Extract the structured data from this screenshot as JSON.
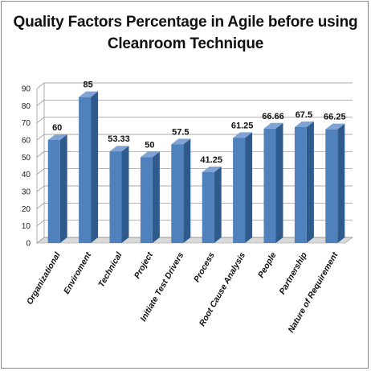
{
  "chart_data": {
    "type": "bar",
    "title": "Quality Factors Percentage in Agile before using Cleanroom Technique",
    "title_lines": [
      "Quality Factors Percentage in Agile before using",
      "Cleanroom Technique"
    ],
    "categories": [
      "Organizational",
      "Enviroment",
      "Technical",
      "Project",
      "Initiate Test Drivers",
      "Process",
      "Root Cause Analysis",
      "People",
      "Partnership",
      "Nature of Requirement"
    ],
    "values": [
      60,
      85,
      53.33,
      50,
      57.5,
      41.25,
      61.25,
      66.66,
      67.5,
      66.25
    ],
    "data_labels": [
      "60",
      "85",
      "53.33",
      "50",
      "57.5",
      "41.25",
      "61.25",
      "66.66",
      "67.5",
      "66.25"
    ],
    "xlabel": "",
    "ylabel": "",
    "ylim": [
      0,
      90
    ],
    "yticks": [
      0,
      10,
      20,
      30,
      40,
      50,
      60,
      70,
      80,
      90
    ],
    "grid": true,
    "legend": "none",
    "style": "3d-column",
    "colors": {
      "bar_front": "#4f81bd",
      "bar_side": "#2f5a8e",
      "bar_top": "#7ea3d4",
      "grid": "#8c8c8c",
      "wall": "#ffffff",
      "floor": "#d9d9d9"
    }
  }
}
